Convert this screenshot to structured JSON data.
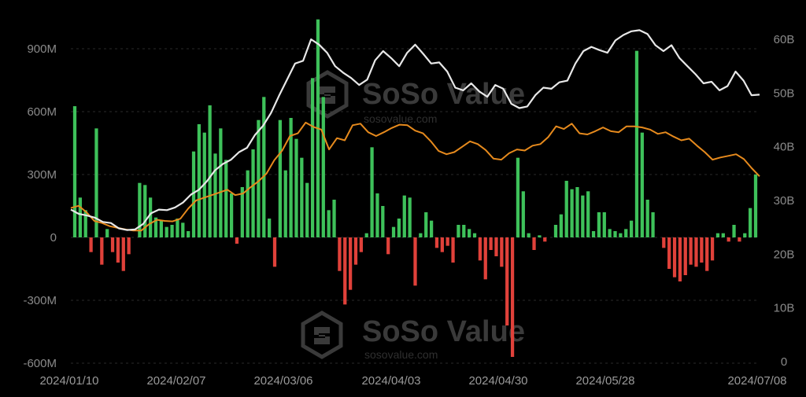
{
  "watermark": {
    "brand": "SoSo Value",
    "url": "sosovalue.com"
  },
  "chart_data": {
    "type": "bar",
    "colors": {
      "positive": "#3ec15a",
      "negative": "#e0413a",
      "white_line": "#e8e8e8",
      "orange_line": "#e68a1d"
    },
    "left_ticks": [
      "900M",
      "600M",
      "300M",
      "0",
      "-300M",
      "-600M"
    ],
    "left_tick_values": [
      900,
      600,
      300,
      0,
      -300,
      -600
    ],
    "left_range": [
      -600,
      1050
    ],
    "right_ticks": [
      "60B",
      "50B",
      "40B",
      "30B",
      "20B",
      "10B",
      "0"
    ],
    "right_tick_values": [
      60,
      50,
      40,
      30,
      20,
      10,
      0
    ],
    "right_range": [
      0,
      64
    ],
    "x_ticks": [
      "2024/01/10",
      "2024/02/07",
      "2024/03/06",
      "2024/04/03",
      "2024/04/30",
      "2024/05/28",
      "2024/07/08"
    ],
    "bars": [
      626,
      190,
      130,
      -70,
      520,
      -130,
      40,
      -70,
      -120,
      -160,
      -80,
      0,
      260,
      250,
      190,
      95,
      80,
      50,
      60,
      90,
      70,
      30,
      410,
      540,
      500,
      630,
      400,
      520,
      370,
      210,
      -30,
      240,
      320,
      420,
      560,
      670,
      90,
      -140,
      560,
      320,
      570,
      470,
      380,
      260,
      760,
      1040,
      670,
      130,
      180,
      -160,
      -320,
      -250,
      -130,
      -70,
      20,
      430,
      210,
      150,
      -80,
      50,
      90,
      200,
      190,
      -230,
      20,
      120,
      80,
      -50,
      -70,
      -40,
      -120,
      60,
      60,
      40,
      20,
      -110,
      -200,
      -60,
      -90,
      -140,
      -420,
      -570,
      380,
      220,
      20,
      -60,
      10,
      -20,
      0,
      60,
      110,
      270,
      230,
      240,
      200,
      220,
      30,
      120,
      120,
      40,
      30,
      20,
      40,
      80,
      890,
      500,
      180,
      120,
      0,
      -50,
      -150,
      -190,
      -210,
      -180,
      -130,
      -140,
      -120,
      -160,
      -110,
      20,
      20,
      -20,
      60,
      -20,
      20,
      140,
      300
    ],
    "white_line": [
      28.3,
      27.5,
      27.2,
      26.8,
      26.0,
      25.8,
      24.8,
      24.5,
      24.6,
      25.6,
      27.6,
      28.3,
      28.2,
      28.7,
      29.6,
      31.1,
      32.0,
      33.6,
      35.6,
      36.8,
      37.6,
      39.0,
      39.8,
      42.2,
      43.9,
      46.3,
      49.5,
      52.5,
      55.5,
      56.0,
      60.0,
      59.0,
      57.5,
      55.0,
      53.8,
      52.8,
      51.5,
      52.5,
      56.1,
      57.8,
      56.5,
      55.0,
      57.5,
      59.0,
      57.3,
      55.5,
      55.7,
      54.0,
      51.0,
      50.5,
      51.8,
      50.3,
      49.3,
      51.5,
      50.8,
      48.0,
      47.2,
      47.5,
      49.6,
      51.0,
      50.8,
      52.0,
      52.3,
      55.5,
      57.8,
      58.6,
      58.0,
      57.5,
      59.8,
      60.8,
      61.5,
      61.7,
      61.0,
      58.9,
      57.8,
      58.9,
      56.5,
      55.0,
      53.5,
      51.8,
      52.1,
      50.5,
      51.3,
      54.0,
      52.3,
      49.6,
      49.7
    ],
    "orange_line": [
      28.6,
      29.0,
      27.8,
      26.2,
      25.8,
      25.2,
      24.9,
      24.6,
      24.4,
      24.4,
      25.6,
      26.4,
      26.2,
      26.1,
      26.6,
      28.5,
      30.0,
      30.5,
      31.0,
      31.5,
      32.0,
      31.0,
      31.3,
      32.5,
      33.6,
      35.0,
      37.5,
      39.3,
      42.0,
      42.5,
      44.5,
      43.7,
      43.2,
      39.5,
      41.6,
      41.2,
      44.0,
      44.3,
      42.7,
      42.0,
      42.7,
      43.5,
      44.1,
      44.0,
      43.0,
      42.5,
      41.0,
      39.2,
      38.6,
      39.0,
      40.0,
      41.0,
      40.5,
      39.4,
      37.8,
      37.6,
      38.8,
      39.5,
      39.3,
      40.2,
      40.5,
      41.8,
      43.8,
      43.3,
      44.3,
      42.5,
      42.3,
      42.9,
      43.6,
      42.9,
      42.7,
      43.8,
      43.8,
      43.6,
      43.2,
      42.4,
      42.7,
      41.9,
      41.2,
      41.5,
      40.2,
      39.0,
      37.6,
      38.0,
      38.3,
      38.6,
      37.7,
      36.0,
      34.5
    ]
  }
}
